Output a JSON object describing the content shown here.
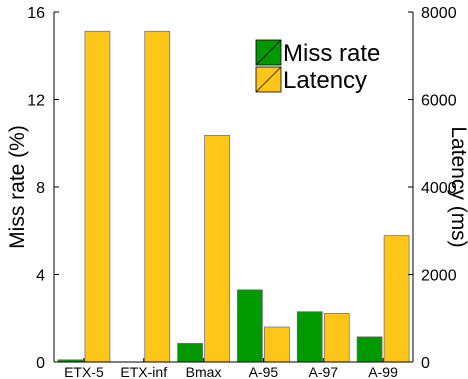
{
  "chart_data": {
    "type": "bar",
    "categories": [
      "ETX-5",
      "ETX-inf",
      "Bmax",
      "A-95",
      "A-97",
      "A-99"
    ],
    "series": [
      {
        "name": "Miss rate",
        "axis": "left",
        "color": "#009900",
        "values": [
          0.1,
          0,
          0.85,
          3.3,
          2.3,
          1.15
        ]
      },
      {
        "name": "Latency",
        "axis": "right",
        "color": "#FFC61A",
        "values": [
          7560,
          7560,
          5180,
          800,
          1110,
          2890
        ]
      }
    ],
    "ylabel": "Miss rate (%)",
    "ylim": [
      0,
      16
    ],
    "yticks": [
      0,
      4,
      8,
      12,
      16
    ],
    "y2label": "Latency (ms)",
    "y2lim": [
      0,
      8000
    ],
    "y2ticks": [
      0,
      2000,
      4000,
      6000,
      8000
    ],
    "legend": "top-right",
    "grid": false
  }
}
